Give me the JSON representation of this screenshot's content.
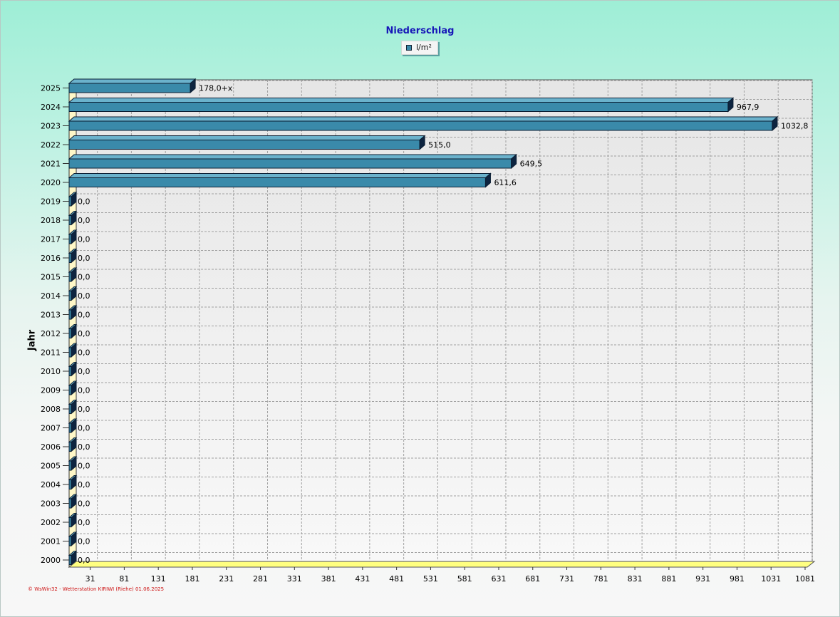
{
  "chart_data": {
    "type": "bar",
    "orientation": "horizontal",
    "title": "Niederschlag",
    "ylabel": "Jahr",
    "xlabel": "",
    "legend": {
      "entries": [
        "l/m²"
      ],
      "placement": "top-center"
    },
    "categories": [
      "2025",
      "2024",
      "2023",
      "2022",
      "2021",
      "2020",
      "2019",
      "2018",
      "2017",
      "2016",
      "2015",
      "2014",
      "2013",
      "2012",
      "2011",
      "2010",
      "2009",
      "2008",
      "2007",
      "2006",
      "2005",
      "2004",
      "2003",
      "2002",
      "2001",
      "2000"
    ],
    "series": [
      {
        "name": "l/m²",
        "values": [
          178.0,
          967.9,
          1032.8,
          515.0,
          649.5,
          611.6,
          0,
          0,
          0,
          0,
          0,
          0,
          0,
          0,
          0,
          0,
          0,
          0,
          0,
          0,
          0,
          0,
          0,
          0,
          0,
          0
        ],
        "color": "#3a8aaa"
      }
    ],
    "data_labels": [
      "178,0+x",
      "967,9",
      "1032,8",
      "515,0",
      "649,5",
      "611,6",
      "0,0",
      "0,0",
      "0,0",
      "0,0",
      "0,0",
      "0,0",
      "0,0",
      "0,0",
      "0,0",
      "0,0",
      "0,0",
      "0,0",
      "0,0",
      "0,0",
      "0,0",
      "0,0",
      "0,0",
      "0,0",
      "0,0",
      "0,0"
    ],
    "x_ticks": [
      31,
      81,
      131,
      181,
      231,
      281,
      331,
      381,
      431,
      481,
      531,
      581,
      631,
      681,
      731,
      781,
      831,
      881,
      931,
      981,
      1031,
      1081
    ],
    "xlim": [
      0,
      1081
    ],
    "grid": true
  },
  "footer": "© WsWin32 - Wetterstation KIRIWI (Riehe) 01.06.2025",
  "colors": {
    "bar": "#3a8aaa",
    "bar_dark": "#0d2440",
    "title": "#1818b8",
    "footer": "#cc1111",
    "floor": "#ffff80"
  }
}
